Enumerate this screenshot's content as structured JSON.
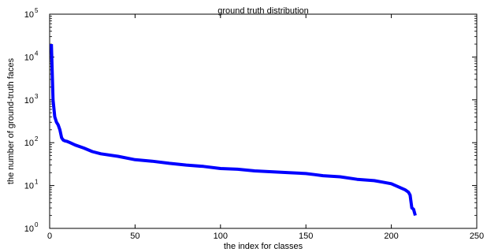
{
  "chart_data": {
    "type": "line",
    "title": "ground truth distribution",
    "xlabel": "the index for classes",
    "ylabel": "the number of ground-truth faces",
    "xlim": [
      0,
      250
    ],
    "ylim": [
      1,
      100000
    ],
    "yscale": "log",
    "grid": false,
    "xticks": [
      {
        "value": 0,
        "label": "0"
      },
      {
        "value": 50,
        "label": "50"
      },
      {
        "value": 100,
        "label": "100"
      },
      {
        "value": 150,
        "label": "150"
      },
      {
        "value": 200,
        "label": "200"
      },
      {
        "value": 250,
        "label": "250"
      }
    ],
    "yticks": [
      {
        "value": 1,
        "base": "10",
        "exp": "0"
      },
      {
        "value": 10,
        "base": "10",
        "exp": "1"
      },
      {
        "value": 100,
        "base": "10",
        "exp": "2"
      },
      {
        "value": 1000,
        "base": "10",
        "exp": "3"
      },
      {
        "value": 10000,
        "base": "10",
        "exp": "4"
      },
      {
        "value": 100000,
        "base": "10",
        "exp": "5"
      }
    ],
    "series": [
      {
        "color": "#0000ff",
        "x": [
          1,
          2,
          3,
          4,
          5,
          6,
          7,
          8,
          9,
          10,
          12,
          15,
          20,
          25,
          30,
          40,
          50,
          60,
          70,
          80,
          90,
          100,
          110,
          120,
          130,
          140,
          150,
          155,
          160,
          170,
          180,
          190,
          195,
          200,
          205,
          208,
          210,
          211,
          212,
          213,
          214
        ],
        "values": [
          20000,
          1000,
          400,
          300,
          260,
          200,
          130,
          115,
          110,
          108,
          100,
          88,
          75,
          62,
          55,
          48,
          40,
          37,
          33,
          30,
          28,
          25,
          24,
          22,
          21,
          20,
          19,
          18,
          17,
          16,
          14,
          13,
          12,
          11,
          9,
          8,
          7,
          6,
          3,
          2.8,
          2
        ]
      }
    ]
  }
}
